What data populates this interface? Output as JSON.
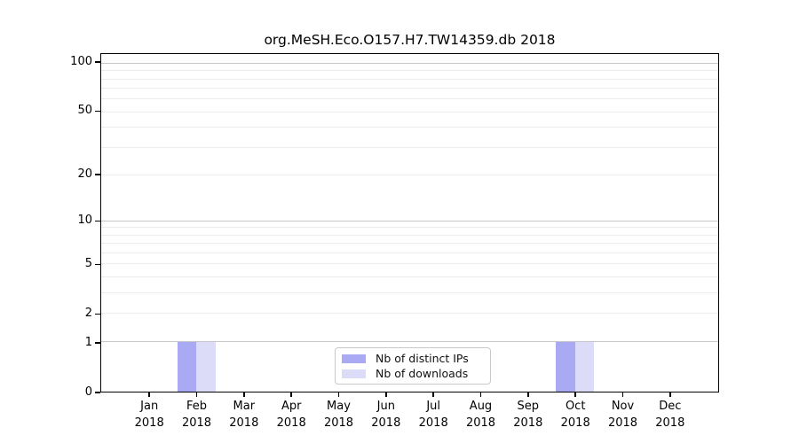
{
  "title": "org.MeSH.Eco.O157.H7.TW14359.db 2018",
  "chart_data": {
    "type": "bar",
    "title": "org.MeSH.Eco.O157.H7.TW14359.db 2018",
    "categories": [
      "Jan",
      "Feb",
      "Mar",
      "Apr",
      "May",
      "Jun",
      "Jul",
      "Aug",
      "Sep",
      "Oct",
      "Nov",
      "Dec"
    ],
    "year_label": "2018",
    "series": [
      {
        "name": "Nb of distinct IPs",
        "color": "#aaaaf4",
        "values": [
          0,
          1,
          0,
          0,
          0,
          0,
          0,
          0,
          0,
          1,
          0,
          0
        ]
      },
      {
        "name": "Nb of downloads",
        "color": "#dcdcf8",
        "values": [
          0,
          1,
          0,
          0,
          0,
          0,
          0,
          0,
          0,
          1,
          0,
          0
        ]
      }
    ],
    "y_scale": "log1p",
    "ylim": [
      0,
      113.4
    ],
    "y_ticks": [
      100,
      50,
      20,
      10,
      5,
      2,
      1,
      0
    ],
    "gridlines": {
      "decade": [
        100,
        10,
        1
      ],
      "minor": [
        90,
        80,
        70,
        60,
        50,
        40,
        30,
        20,
        9,
        8,
        7,
        6,
        5,
        4,
        3,
        2
      ]
    },
    "grid": true,
    "legend_position": "lower center"
  },
  "colors": {
    "background": "#ffffff",
    "axis": "#000000",
    "grid_decade": "#c6c6c6",
    "grid_minor": "#ececec",
    "legend_border": "#c9c9c9",
    "text": "#000000"
  }
}
